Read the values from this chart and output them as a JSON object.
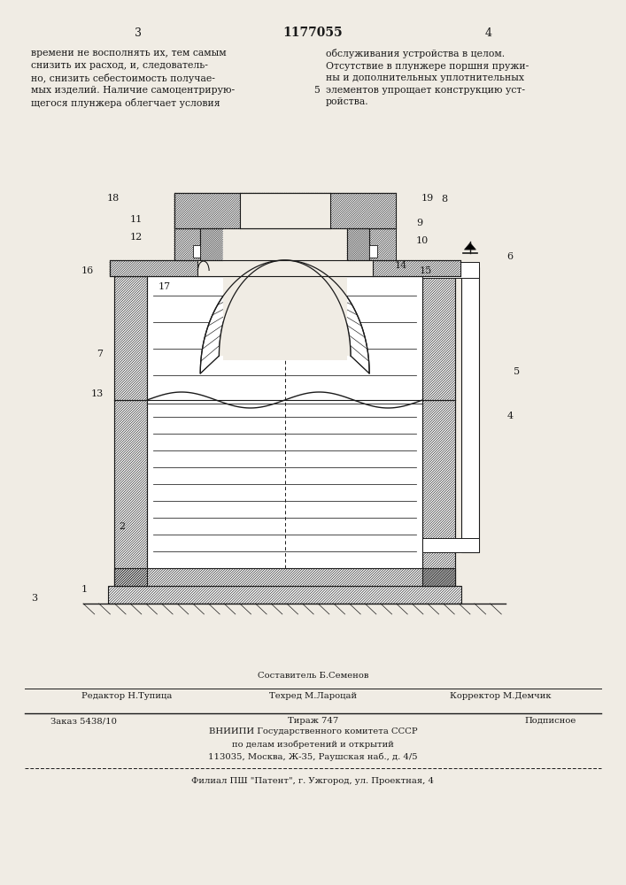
{
  "bg_color": "#f0ece4",
  "line_color": "#1a1a1a",
  "page_left": "3",
  "page_center": "1177055",
  "page_right": "4",
  "text_col1": "времени не восполнять их, тем самым\nснизить их расход, и, следователь-\nно, снизить себестоимость получае-\nмых изделий. Наличие самоцентрирую-\nщегося плунжера облегчает условия",
  "text_col2": "обслуживания устройства в целом.\nОтсутствие в плунжере поршня пружи-\nны и дополнительных уплотнительных\nэлементов упрощает конструкцию уст-\nройства.",
  "text_num5": "5",
  "footer_sestavitel": "Составитель Б.Семенов",
  "footer_redaktor": "Редактор Н.Тупица",
  "footer_texred": "Техред М.Лароцай",
  "footer_korrektor": "Корректор М.Демчик",
  "footer_zakaz": "Заказ 5438/10",
  "footer_tirazh": "Тираж 747",
  "footer_podpisnoe": "Подписное",
  "footer_vniipи": "ВНИИПИ Государственного комитета СССР",
  "footer_po_delam": "по делам изобретений и открытий",
  "footer_address": "113035, Москва, Ж-35, Раушская наб., д. 4/5",
  "footer_filial": "Филиал ПШ \"Патент\", г. Ужгород, ул. Проектная, 4"
}
